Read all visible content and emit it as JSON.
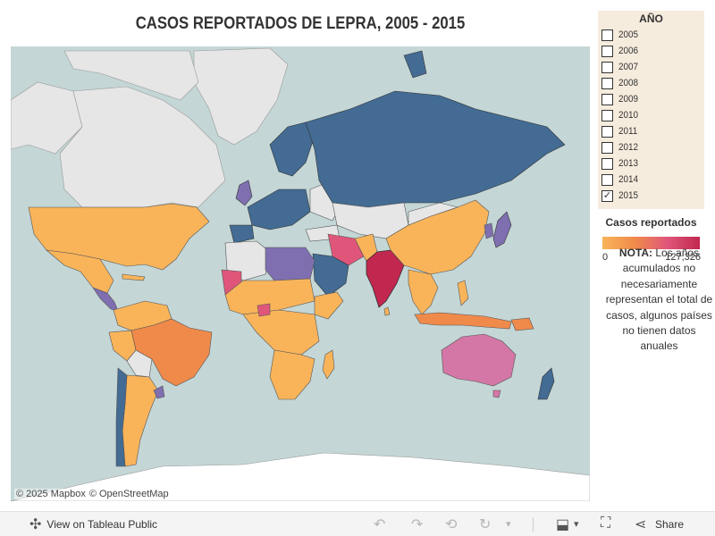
{
  "title": "CASOS REPORTADOS DE LEPRA, 2005 - 2015",
  "map": {
    "credits": [
      "© 2025 Mapbox",
      "© OpenStreetMap"
    ],
    "colors": {
      "ocean": "#c4d6d6",
      "no_data": "#e6e6e6",
      "lowest": "#436b93",
      "low": "#7f6fb0",
      "mid_low": "#f9b45a",
      "mid": "#f08a4b",
      "mid_high": "#d477a6",
      "high": "#e0567a",
      "highest": "#c2274f"
    }
  },
  "filter": {
    "title": "AÑO",
    "items": [
      {
        "label": "2005",
        "checked": false
      },
      {
        "label": "2006",
        "checked": false
      },
      {
        "label": "2007",
        "checked": false
      },
      {
        "label": "2008",
        "checked": false
      },
      {
        "label": "2009",
        "checked": false
      },
      {
        "label": "2010",
        "checked": false
      },
      {
        "label": "2011",
        "checked": false
      },
      {
        "label": "2012",
        "checked": false
      },
      {
        "label": "2013",
        "checked": false
      },
      {
        "label": "2014",
        "checked": false
      },
      {
        "label": "2015",
        "checked": true
      }
    ]
  },
  "legend": {
    "title": "Casos reportados",
    "min": "0",
    "max": "127,326"
  },
  "note": {
    "bold": "NOTA:",
    "text": " Los años acumulados no necesariamente representan el total de casos, algunos países no tienen datos anuales"
  },
  "toolbar": {
    "view_label": "View on Tableau Public",
    "share_label": "Share",
    "icons": [
      "tableau-icon",
      "undo-icon",
      "redo-icon",
      "revert-icon",
      "refresh-icon",
      "pause-icon",
      "download-icon",
      "fullscreen-icon",
      "share-icon"
    ]
  }
}
